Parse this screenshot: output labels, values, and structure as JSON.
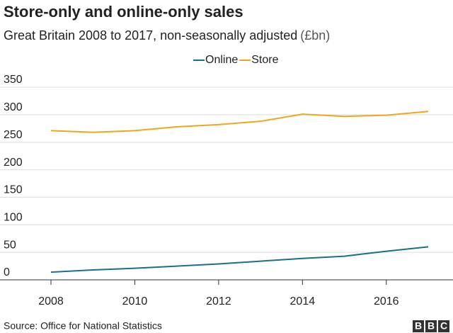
{
  "chart_data": {
    "type": "line",
    "title": "Store-only and online-only sales",
    "subtitle": "Great Britain 2008 to 2017, non-seasonally adjusted",
    "unit": "(£bn)",
    "source": "Source: Office for National Statistics",
    "logo": [
      "B",
      "B",
      "C"
    ],
    "x": [
      2008,
      2009,
      2010,
      2011,
      2012,
      2013,
      2014,
      2015,
      2016,
      2017
    ],
    "series": [
      {
        "name": "Online",
        "color": "#1b6f8c",
        "values": [
          14,
          18,
          21,
          25,
          29,
          34,
          39,
          43,
          52,
          60
        ]
      },
      {
        "name": "Store",
        "color": "#f0a71b",
        "values": [
          271,
          268,
          271,
          278,
          282,
          288,
          301,
          297,
          299,
          306
        ]
      }
    ],
    "xlim": [
      2008,
      2017
    ],
    "xticks": [
      2008,
      2010,
      2012,
      2014,
      2016
    ],
    "ylim": [
      0,
      350
    ],
    "yticks": [
      0,
      50,
      100,
      150,
      200,
      250,
      300,
      350
    ],
    "grid": true
  }
}
